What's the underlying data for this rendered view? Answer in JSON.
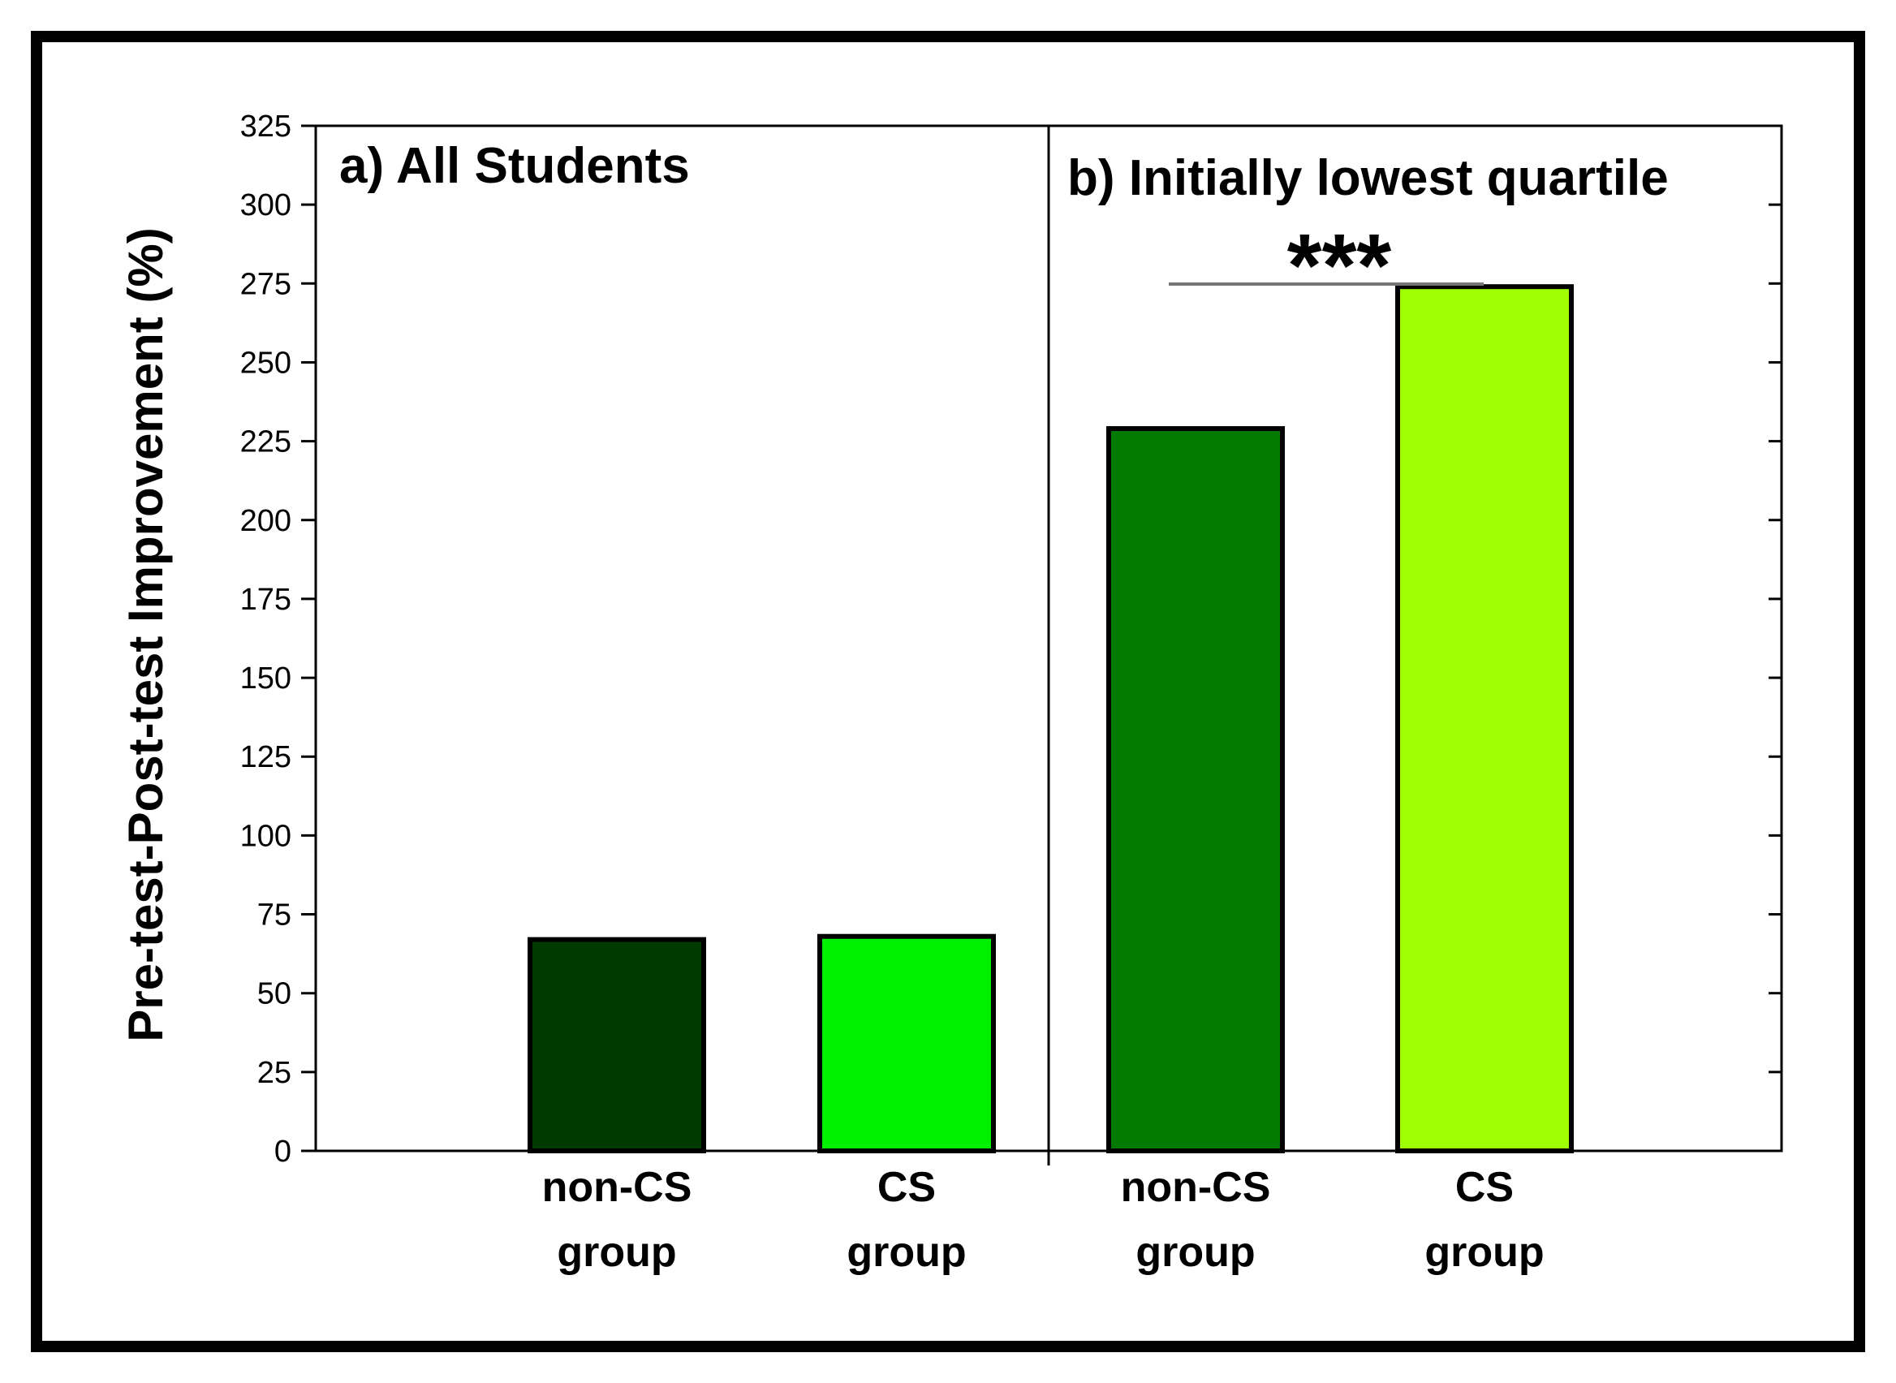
{
  "chart_data": {
    "type": "bar",
    "ylabel": "Pre-test-Post-test Improvement (%)",
    "ylim": [
      0,
      325
    ],
    "yticks": [
      0,
      25,
      50,
      75,
      100,
      125,
      150,
      175,
      200,
      225,
      250,
      275,
      300,
      325
    ],
    "grid": false,
    "panels": [
      {
        "title": "a) All Students",
        "categories": [
          [
            "non-CS",
            "group"
          ],
          [
            "CS",
            "group"
          ]
        ],
        "values": [
          67,
          68
        ],
        "colors": [
          "#003a00",
          "#00f000"
        ]
      },
      {
        "title": "b) Initially lowest quartile",
        "categories": [
          [
            "non-CS",
            "group"
          ],
          [
            "CS",
            "group"
          ]
        ],
        "values": [
          229,
          274
        ],
        "colors": [
          "#007a00",
          "#a0ff00"
        ],
        "significance": "***"
      }
    ]
  }
}
